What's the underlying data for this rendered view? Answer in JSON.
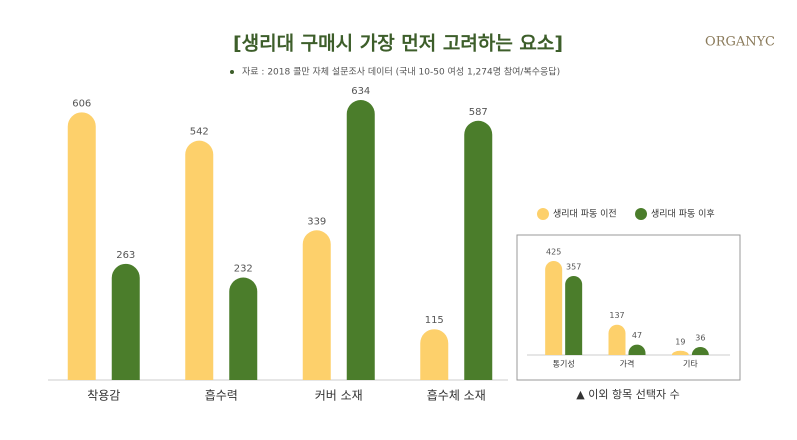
{
  "brand": "ORGANYC",
  "chart_data": [
    {
      "type": "bar",
      "title": "[생리대 구매시 가장 먼저 고려하는 요소]",
      "subtitle": "자료 : 2018 콜만 자체 설문조사 데이터 (국내 10-50 여성 1,274명 참여/복수응답)",
      "categories": [
        "착용감",
        "흡수력",
        "커버 소재",
        "흡수체 소재"
      ],
      "series": [
        {
          "name": "생리대 파동 이전",
          "color": "#fdd06b",
          "values": [
            606,
            542,
            339,
            115
          ]
        },
        {
          "name": "생리대 파동 이후",
          "color": "#4b7d2b",
          "values": [
            263,
            232,
            634,
            587
          ]
        }
      ]
    },
    {
      "type": "bar",
      "caption": "▲ 이외 항목 선택자 수",
      "categories": [
        "통기성",
        "가격",
        "기타"
      ],
      "series": [
        {
          "color": "#fdd06b",
          "values": [
            425,
            137,
            19
          ]
        },
        {
          "color": "#4b7d2b",
          "values": [
            357,
            47,
            36
          ]
        }
      ]
    }
  ]
}
